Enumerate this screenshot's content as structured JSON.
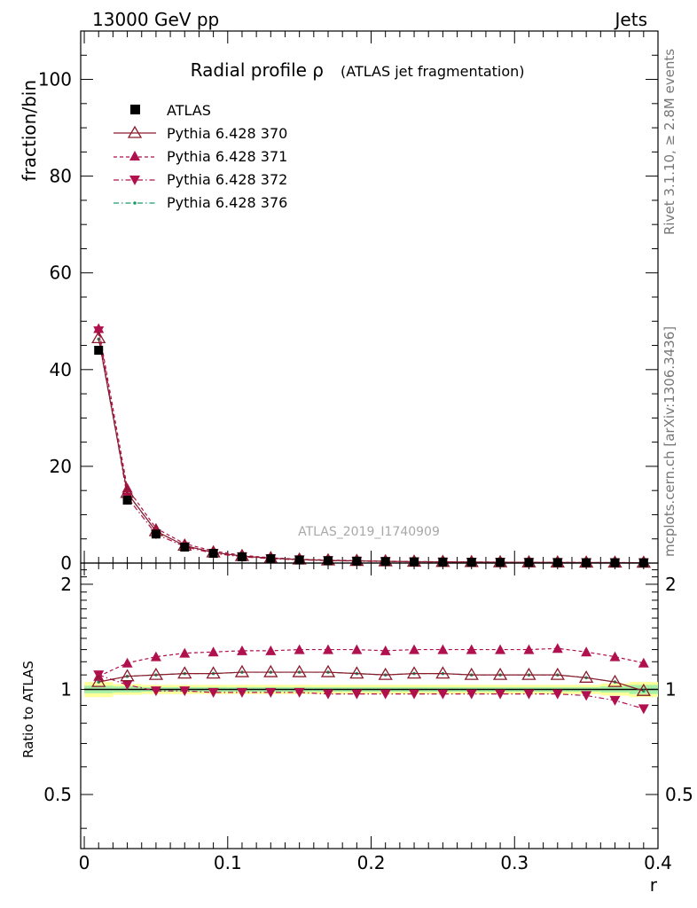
{
  "header": {
    "left": "13000 GeV pp",
    "right": "Jets"
  },
  "side": {
    "rivet": "Rivet 3.1.10, ≥ 2.8M events",
    "mcplots": "mcplots.cern.ch [arXiv:1306.3436]"
  },
  "colors": {
    "atlas": "#000000",
    "p370": "#8b1a2b",
    "p371": "#b0104e",
    "p372": "#b0104e",
    "p376": "#1a9a6b",
    "band_inner": "#a8f0a8",
    "band_outer": "#ffff99"
  },
  "chart_data": [
    {
      "type": "line",
      "title_main": "Radial profile ρ",
      "title_sub": "(ATLAS jet fragmentation)",
      "watermark": "ATLAS_2019_I1740909",
      "ylabel": "fraction/bin",
      "xlim": [
        -0.0025,
        0.4
      ],
      "ylim": [
        0,
        110
      ],
      "yticks": [
        0,
        20,
        40,
        60,
        80,
        100
      ],
      "ytick_labels": [
        "0",
        "20",
        "40",
        "60",
        "80",
        "100"
      ],
      "x": [
        0.01,
        0.03,
        0.05,
        0.07,
        0.09,
        0.11,
        0.13,
        0.15,
        0.17,
        0.19,
        0.21,
        0.23,
        0.25,
        0.27,
        0.29,
        0.31,
        0.33,
        0.35,
        0.37,
        0.39
      ],
      "legend": [
        "ATLAS",
        "Pythia 6.428 370",
        "Pythia 6.428 371",
        "Pythia 6.428 372",
        "Pythia 6.428 376"
      ],
      "series": [
        {
          "name": "ATLAS",
          "values": [
            44.0,
            13.0,
            6.0,
            3.3,
            2.0,
            1.3,
            0.9,
            0.65,
            0.5,
            0.4,
            0.32,
            0.26,
            0.21,
            0.18,
            0.15,
            0.13,
            0.11,
            0.09,
            0.08,
            0.07
          ]
        },
        {
          "name": "Pythia 6.428 370",
          "values": [
            46.5,
            14.5,
            6.6,
            3.6,
            2.2,
            1.45,
            1.0,
            0.73,
            0.56,
            0.45,
            0.36,
            0.29,
            0.24,
            0.2,
            0.17,
            0.15,
            0.12,
            0.1,
            0.085,
            0.07
          ]
        },
        {
          "name": "Pythia 6.428 371",
          "values": [
            48.5,
            15.5,
            7.2,
            4.0,
            2.5,
            1.6,
            1.1,
            0.8,
            0.62,
            0.5,
            0.39,
            0.32,
            0.26,
            0.22,
            0.19,
            0.16,
            0.14,
            0.11,
            0.09,
            0.08
          ]
        },
        {
          "name": "Pythia 6.428 372",
          "values": [
            48.0,
            13.6,
            6.0,
            3.4,
            2.0,
            1.3,
            0.9,
            0.66,
            0.5,
            0.4,
            0.32,
            0.26,
            0.21,
            0.18,
            0.15,
            0.13,
            0.11,
            0.09,
            0.08,
            0.07
          ]
        },
        {
          "name": "Pythia 6.428 376",
          "values": [
            46.3,
            14.4,
            6.6,
            3.6,
            2.2,
            1.45,
            1.0,
            0.73,
            0.56,
            0.45,
            0.36,
            0.29,
            0.24,
            0.2,
            0.17,
            0.15,
            0.12,
            0.1,
            0.085,
            0.07
          ]
        }
      ]
    },
    {
      "type": "line",
      "ylabel": "Ratio to ATLAS",
      "xlabel": "r",
      "xlim": [
        -0.0025,
        0.4
      ],
      "ylim": [
        0.35,
        2.3
      ],
      "yticks": [
        0.5,
        1,
        2
      ],
      "ytick_labels": [
        "0.5",
        "1",
        "2"
      ],
      "xticks": [
        0,
        0.1,
        0.2,
        0.3,
        0.4
      ],
      "xtick_labels": [
        "0",
        "0.1",
        "0.2",
        "0.3",
        "0.4"
      ],
      "x": [
        0.01,
        0.03,
        0.05,
        0.07,
        0.09,
        0.11,
        0.13,
        0.15,
        0.17,
        0.19,
        0.21,
        0.23,
        0.25,
        0.27,
        0.29,
        0.31,
        0.33,
        0.35,
        0.37,
        0.39
      ],
      "band_inner": [
        0.025,
        0.02,
        0.015,
        0.015,
        0.015,
        0.015,
        0.015,
        0.015,
        0.015,
        0.015,
        0.015,
        0.015,
        0.015,
        0.015,
        0.015,
        0.015,
        0.015,
        0.015,
        0.02,
        0.03
      ],
      "band_outer": [
        0.05,
        0.035,
        0.03,
        0.03,
        0.03,
        0.03,
        0.03,
        0.03,
        0.03,
        0.03,
        0.03,
        0.03,
        0.03,
        0.03,
        0.03,
        0.03,
        0.03,
        0.03,
        0.04,
        0.05
      ],
      "series": [
        {
          "name": "Pythia 6.428 370",
          "values": [
            1.05,
            1.09,
            1.1,
            1.11,
            1.11,
            1.12,
            1.12,
            1.12,
            1.12,
            1.11,
            1.1,
            1.11,
            1.11,
            1.1,
            1.1,
            1.1,
            1.1,
            1.08,
            1.05,
            0.99
          ]
        },
        {
          "name": "Pythia 6.428 371",
          "values": [
            1.09,
            1.19,
            1.24,
            1.27,
            1.28,
            1.29,
            1.29,
            1.3,
            1.3,
            1.3,
            1.29,
            1.3,
            1.3,
            1.3,
            1.3,
            1.3,
            1.31,
            1.28,
            1.24,
            1.19
          ]
        },
        {
          "name": "Pythia 6.428 372",
          "values": [
            1.1,
            1.03,
            0.99,
            0.99,
            0.98,
            0.98,
            0.98,
            0.98,
            0.97,
            0.97,
            0.97,
            0.97,
            0.97,
            0.97,
            0.97,
            0.97,
            0.97,
            0.96,
            0.93,
            0.88
          ]
        },
        {
          "name": "Pythia 6.428 376",
          "values": [
            1.05,
            1.09,
            1.1,
            1.11,
            1.11,
            1.12,
            1.12,
            1.12,
            1.12,
            1.11,
            1.1,
            1.11,
            1.11,
            1.1,
            1.1,
            1.1,
            1.1,
            1.08,
            1.05,
            0.99
          ]
        }
      ]
    }
  ]
}
